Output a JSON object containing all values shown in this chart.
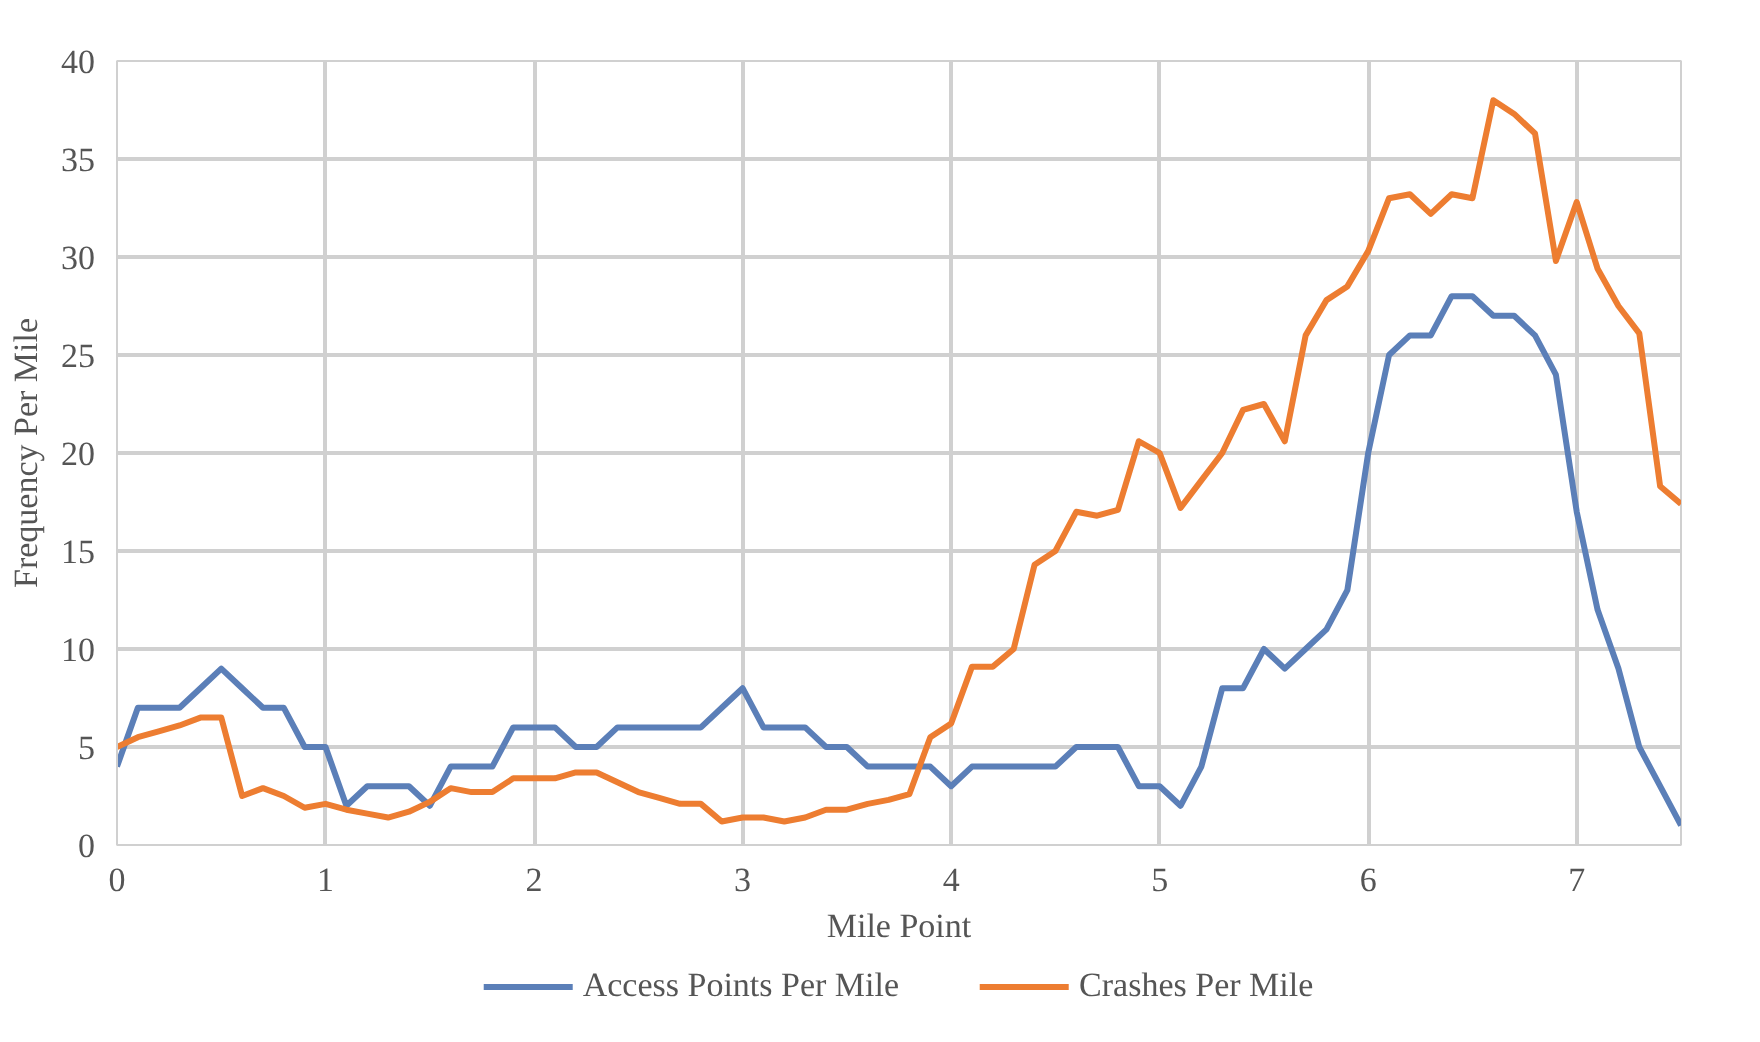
{
  "chart_data": {
    "type": "line",
    "xlabel": "Mile Point",
    "ylabel": "Frequency Per Mile",
    "x": [
      0,
      0.1,
      0.2,
      0.3,
      0.4,
      0.5,
      0.6,
      0.7,
      0.8,
      0.9,
      1,
      1.1,
      1.2,
      1.3,
      1.4,
      1.5,
      1.6,
      1.7,
      1.8,
      1.9,
      2,
      2.1,
      2.2,
      2.3,
      2.4,
      2.5,
      2.6,
      2.7,
      2.8,
      2.9,
      3,
      3.1,
      3.2,
      3.3,
      3.4,
      3.5,
      3.6,
      3.7,
      3.8,
      3.9,
      4,
      4.1,
      4.2,
      4.3,
      4.4,
      4.5,
      4.6,
      4.7,
      4.8,
      4.9,
      5,
      5.1,
      5.2,
      5.3,
      5.4,
      5.5,
      5.6,
      5.7,
      5.8,
      5.9,
      6,
      6.1,
      6.2,
      6.3,
      6.4,
      6.5,
      6.6,
      6.7,
      6.8,
      6.9,
      7,
      7.1,
      7.2,
      7.3,
      7.4,
      7.5
    ],
    "series": [
      {
        "name": "Access Points Per Mile",
        "color": "#5b7fb8",
        "values": [
          4,
          7,
          7,
          7,
          8,
          9,
          8,
          7,
          7,
          5,
          5,
          2,
          3,
          3,
          3,
          2,
          4,
          4,
          4,
          6,
          6,
          6,
          5,
          5,
          6,
          6,
          6,
          6,
          6,
          7,
          8,
          6,
          6,
          6,
          5,
          5,
          4,
          4,
          4,
          4,
          3,
          4,
          4,
          4,
          4,
          4,
          5,
          5,
          5,
          3,
          3,
          2,
          4,
          8,
          8,
          10,
          9,
          10,
          11,
          13,
          20,
          25,
          26,
          26,
          28,
          28,
          27,
          27,
          26,
          24,
          17,
          12,
          9,
          5,
          3,
          1
        ]
      },
      {
        "name": "Crashes Per Mile",
        "color": "#ed7d31",
        "values": [
          5,
          5.5,
          5.8,
          6.1,
          6.5,
          6.5,
          2.5,
          2.9,
          2.5,
          1.9,
          2.1,
          1.8,
          1.6,
          1.4,
          1.7,
          2.2,
          2.9,
          2.7,
          2.7,
          3.4,
          3.4,
          3.4,
          3.7,
          3.7,
          3.2,
          2.7,
          2.4,
          2.1,
          2.1,
          1.2,
          1.4,
          1.4,
          1.2,
          1.4,
          1.8,
          1.8,
          2.1,
          2.3,
          2.6,
          5.5,
          6.2,
          9.1,
          9.1,
          10,
          14.3,
          15,
          17,
          16.8,
          17.1,
          20.6,
          20,
          17.2,
          18.6,
          20,
          22.2,
          22.5,
          20.6,
          26,
          27.8,
          28.5,
          30.3,
          33,
          33.2,
          32.2,
          33.2,
          33,
          38,
          37.3,
          36.3,
          29.8,
          32.8,
          29.4,
          27.5,
          26.1,
          18.3,
          17.4
        ]
      }
    ],
    "xlim": [
      0,
      7.5
    ],
    "xticks": [
      0,
      1,
      2,
      3,
      4,
      5,
      6,
      7
    ],
    "ylim": [
      0,
      40
    ],
    "yticks": [
      0,
      5,
      10,
      15,
      20,
      25,
      30,
      35,
      40
    ],
    "grid": true,
    "legend": "bottom",
    "marker": "none",
    "line_style": "solid"
  }
}
